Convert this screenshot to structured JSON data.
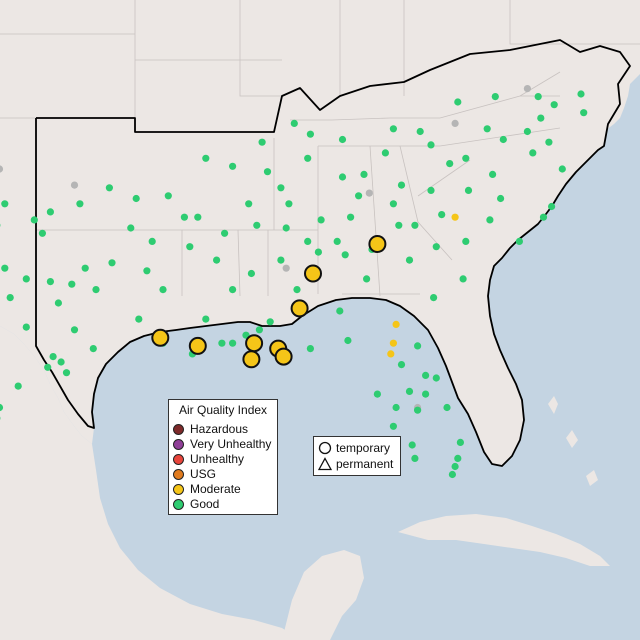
{
  "legend": {
    "title": "Air Quality Index",
    "categories": [
      {
        "label": "Hazardous",
        "color": "#7e2a2a"
      },
      {
        "label": "Very Unhealthy",
        "color": "#8f3f97"
      },
      {
        "label": "Unhealthy",
        "color": "#e8453c"
      },
      {
        "label": "USG",
        "color": "#e07b1f"
      },
      {
        "label": "Moderate",
        "color": "#f5c518"
      },
      {
        "label": "Good",
        "color": "#2ecc71"
      }
    ]
  },
  "monitor_types": [
    {
      "label": "temporary",
      "icon": "circle-icon"
    },
    {
      "label": "permanent",
      "icon": "triangle-icon"
    }
  ],
  "colors": {
    "ocean": "#c4d4e2",
    "land": "#ece7e4",
    "border": "#000000",
    "state_line": "#c8c2c0",
    "no_data": "#b5b5b5"
  },
  "stations": {
    "moderate_temporary": [
      [
        -97.7,
        31.0
      ],
      [
        -91.3,
        30.6
      ],
      [
        -89.9,
        30.3
      ],
      [
        -87.8,
        30.4
      ],
      [
        -87.9,
        29.8
      ],
      [
        -86.9,
        30.2
      ],
      [
        -86.7,
        29.9
      ],
      [
        -86.1,
        31.7
      ],
      [
        -85.6,
        33.0
      ],
      [
        -83.2,
        34.1
      ]
    ],
    "moderate_small": [
      [
        -80.3,
        35.1
      ],
      [
        -82.5,
        31.1
      ],
      [
        -82.6,
        30.4
      ],
      [
        -82.7,
        30.0
      ],
      [
        -98.5,
        30.2
      ],
      [
        -98.9,
        29.1
      ]
    ],
    "good": [
      [
        -99.0,
        35.6
      ],
      [
        -97.1,
        35.6
      ],
      [
        -98.3,
        35.2
      ],
      [
        -97.4,
        34.8
      ],
      [
        -96.0,
        35.0
      ],
      [
        -95.4,
        35.3
      ],
      [
        -94.3,
        35.6
      ],
      [
        -99.6,
        34.5
      ],
      [
        -97.7,
        34.4
      ],
      [
        -95.7,
        34.5
      ],
      [
        -100.4,
        33.6
      ],
      [
        -98.7,
        33.5
      ],
      [
        -97.6,
        33.7
      ],
      [
        -97.1,
        33.2
      ],
      [
        -96.3,
        32.8
      ],
      [
        -95.4,
        32.7
      ],
      [
        -94.6,
        32.6
      ],
      [
        -94.1,
        33.2
      ],
      [
        -99.9,
        32.3
      ],
      [
        -98.4,
        32.1
      ],
      [
        -96.9,
        32.1
      ],
      [
        -95.1,
        31.9
      ],
      [
        -96.3,
        31.0
      ],
      [
        -94.5,
        30.9
      ],
      [
        -93.8,
        30.2
      ],
      [
        -95.3,
        29.9
      ],
      [
        -95.0,
        29.7
      ],
      [
        -95.5,
        29.5
      ],
      [
        -94.8,
        29.3
      ],
      [
        -96.6,
        28.8
      ],
      [
        -97.3,
        28.0
      ],
      [
        -97.4,
        27.6
      ],
      [
        -98.2,
        26.3
      ],
      [
        -97.5,
        25.9
      ],
      [
        -99.5,
        27.5
      ],
      [
        -98.6,
        29.3
      ],
      [
        -93.2,
        36.2
      ],
      [
        -92.2,
        35.8
      ],
      [
        -91.0,
        35.9
      ],
      [
        -90.4,
        35.1
      ],
      [
        -92.4,
        34.7
      ],
      [
        -91.6,
        34.2
      ],
      [
        -93.1,
        33.4
      ],
      [
        -91.8,
        33.1
      ],
      [
        -91.2,
        32.4
      ],
      [
        -92.1,
        31.3
      ],
      [
        -93.7,
        32.4
      ],
      [
        -91.2,
        30.4
      ],
      [
        -90.1,
        30.0
      ],
      [
        -89.6,
        31.3
      ],
      [
        -88.6,
        32.4
      ],
      [
        -89.2,
        33.5
      ],
      [
        -88.9,
        34.5
      ],
      [
        -90.2,
        34.0
      ],
      [
        -87.9,
        33.0
      ],
      [
        -86.8,
        33.5
      ],
      [
        -86.2,
        32.4
      ],
      [
        -85.4,
        33.8
      ],
      [
        -86.6,
        34.7
      ],
      [
        -87.7,
        34.8
      ],
      [
        -87.2,
        31.2
      ],
      [
        -88.1,
        30.7
      ],
      [
        -88.6,
        30.4
      ],
      [
        -89.0,
        30.4
      ],
      [
        -85.7,
        30.2
      ],
      [
        -84.3,
        30.5
      ],
      [
        -84.6,
        31.6
      ],
      [
        -83.6,
        32.8
      ],
      [
        -84.4,
        33.7
      ],
      [
        -84.7,
        34.2
      ],
      [
        -83.4,
        33.9
      ],
      [
        -82.0,
        33.5
      ],
      [
        -81.1,
        32.1
      ],
      [
        -81.7,
        30.3
      ],
      [
        -81.4,
        29.2
      ],
      [
        -82.3,
        29.6
      ],
      [
        -81.0,
        29.1
      ],
      [
        -82.5,
        28.0
      ],
      [
        -81.4,
        28.5
      ],
      [
        -80.6,
        28.0
      ],
      [
        -82.6,
        27.3
      ],
      [
        -81.9,
        26.6
      ],
      [
        -80.2,
        26.1
      ],
      [
        -80.3,
        25.8
      ],
      [
        -80.1,
        26.7
      ],
      [
        -81.8,
        26.1
      ],
      [
        -80.4,
        25.5
      ],
      [
        -83.2,
        28.5
      ],
      [
        -81.7,
        27.9
      ],
      [
        -82.0,
        28.6
      ],
      [
        -81.0,
        34.0
      ],
      [
        -80.0,
        32.8
      ],
      [
        -79.9,
        34.2
      ],
      [
        -81.8,
        34.8
      ],
      [
        -82.4,
        34.8
      ],
      [
        -80.8,
        35.2
      ],
      [
        -79.8,
        36.1
      ],
      [
        -78.6,
        35.8
      ],
      [
        -77.9,
        34.2
      ],
      [
        -77.0,
        35.1
      ],
      [
        -76.7,
        35.5
      ],
      [
        -79.0,
        35.0
      ],
      [
        -81.2,
        36.1
      ],
      [
        -82.6,
        35.6
      ],
      [
        -83.9,
        35.9
      ],
      [
        -85.3,
        35.0
      ],
      [
        -86.8,
        36.2
      ],
      [
        -88.0,
        35.6
      ],
      [
        -89.9,
        35.1
      ],
      [
        -84.5,
        36.6
      ],
      [
        -85.8,
        37.3
      ],
      [
        -84.5,
        38.0
      ],
      [
        -85.7,
        38.2
      ],
      [
        -87.5,
        37.9
      ],
      [
        -82.6,
        38.4
      ],
      [
        -81.6,
        38.3
      ],
      [
        -80.2,
        39.4
      ],
      [
        -79.9,
        37.3
      ],
      [
        -78.5,
        38.0
      ],
      [
        -77.4,
        37.5
      ],
      [
        -76.3,
        36.9
      ],
      [
        -78.9,
        36.7
      ],
      [
        -80.5,
        37.1
      ],
      [
        -77.1,
        38.8
      ],
      [
        -76.6,
        39.3
      ],
      [
        -75.6,
        39.7
      ],
      [
        -77.2,
        39.6
      ],
      [
        -78.8,
        39.6
      ],
      [
        -81.2,
        37.8
      ],
      [
        -82.9,
        37.5
      ],
      [
        -83.7,
        36.7
      ],
      [
        -86.3,
        38.6
      ],
      [
        -87.3,
        36.8
      ],
      [
        -88.6,
        37.0
      ],
      [
        -89.6,
        37.3
      ],
      [
        -84.2,
        35.1
      ],
      [
        -82.3,
        36.3
      ],
      [
        -86.5,
        35.6
      ],
      [
        -85.8,
        34.2
      ],
      [
        -77.6,
        38.3
      ],
      [
        -76.8,
        37.9
      ],
      [
        -75.5,
        39.0
      ],
      [
        -79.1,
        38.4
      ],
      [
        -87.6,
        30.9
      ]
    ],
    "no_data": [
      [
        -97.3,
        36.9
      ],
      [
        -94.5,
        36.3
      ],
      [
        -83.5,
        36.0
      ],
      [
        -86.6,
        33.2
      ],
      [
        -80.3,
        38.6
      ],
      [
        -77.6,
        39.9
      ],
      [
        -81.7,
        28.0
      ]
    ]
  }
}
